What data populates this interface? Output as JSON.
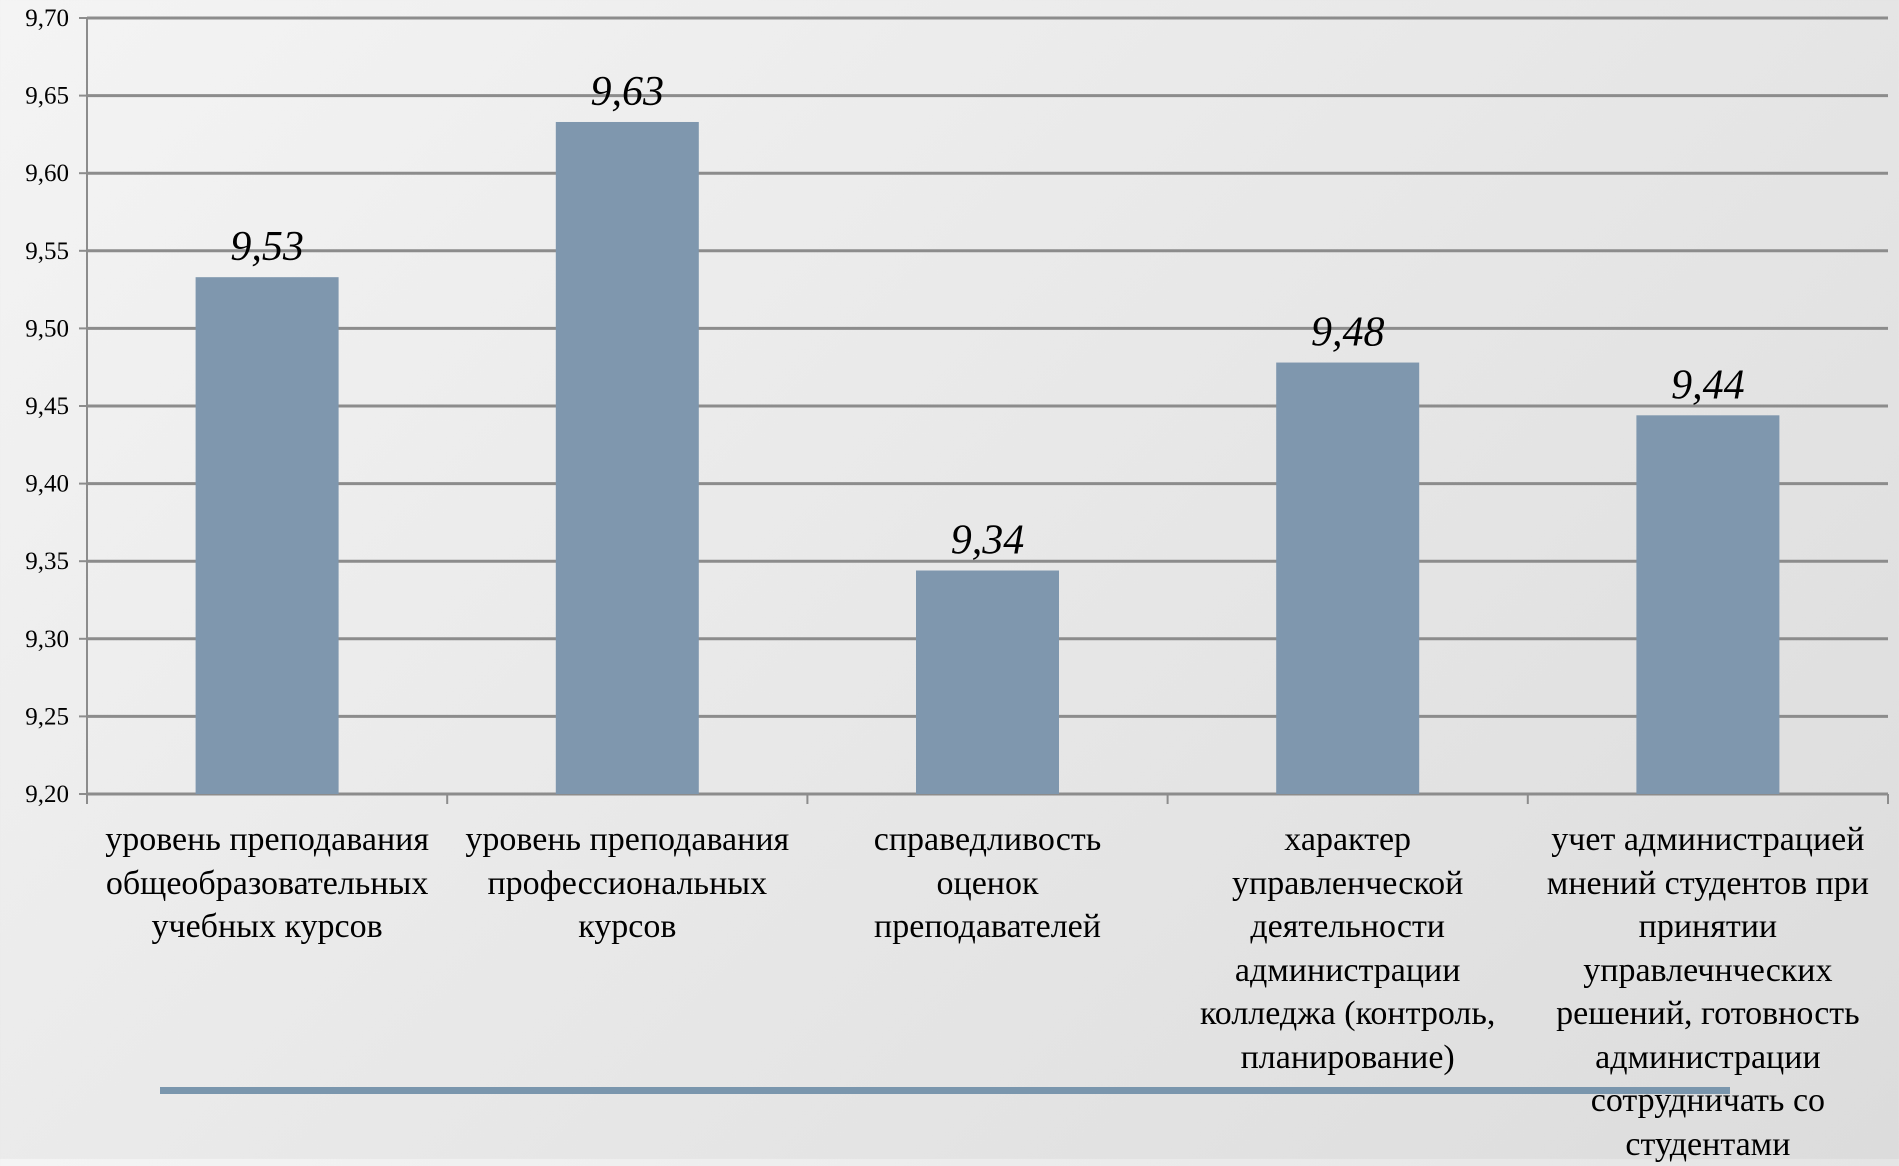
{
  "chart_data": {
    "type": "bar",
    "categories": [
      [
        "уровень преподавания",
        "общеобразовательных",
        "учебных курсов"
      ],
      [
        "уровень преподавания",
        "профессиональных",
        "курсов"
      ],
      [
        "справедливость",
        "оценок",
        "преподавателей"
      ],
      [
        "характер",
        "управленческой",
        "деятельности",
        "администрации",
        "колледжа (контроль,",
        "планирование)"
      ],
      [
        "учет администрацией",
        "мнений студентов при",
        "принятии",
        "управлечнческих",
        "решений, готовность",
        "администрации",
        "сотрудничать со",
        "студентами"
      ]
    ],
    "values": [
      9.533,
      9.633,
      9.344,
      9.478,
      9.444
    ],
    "data_labels": [
      "9,53",
      "9,63",
      "9,34",
      "9,48",
      "9,44"
    ],
    "ylim": [
      9.2,
      9.7
    ],
    "yticks": [
      "9,20",
      "9,25",
      "9,30",
      "9,35",
      "9,40",
      "9,45",
      "9,50",
      "9,55",
      "9,60",
      "9,65",
      "9,70"
    ],
    "grid": true,
    "bar_color": "#7f97ae",
    "title": "",
    "xlabel": "",
    "ylabel": ""
  }
}
